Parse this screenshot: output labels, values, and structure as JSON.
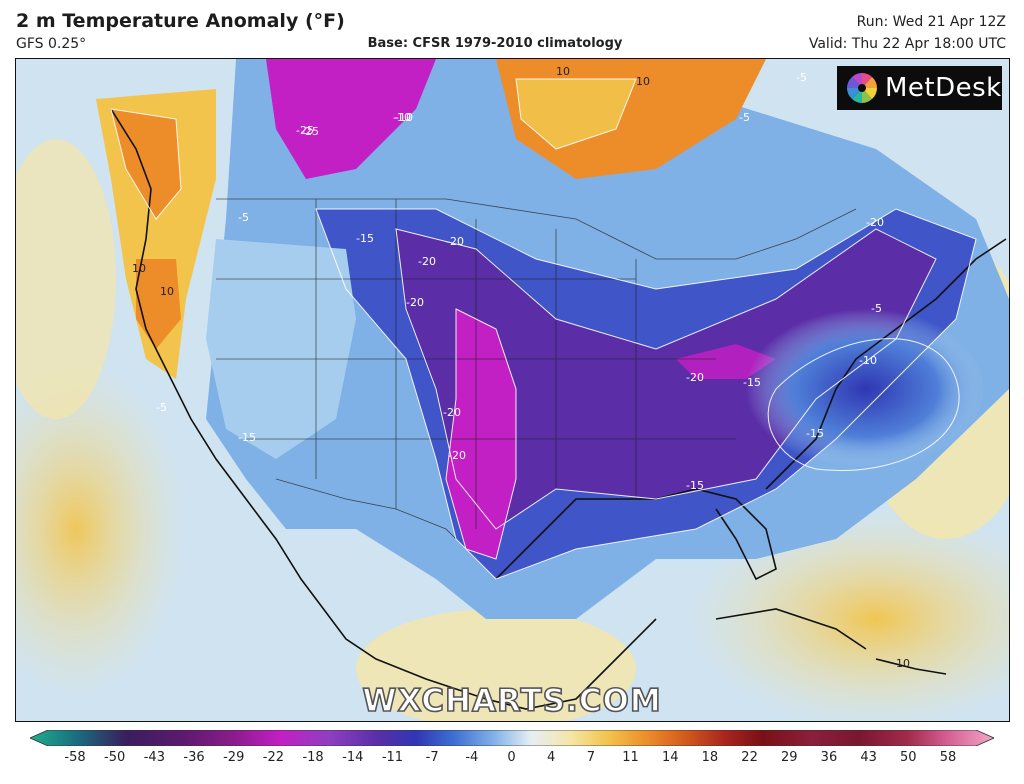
{
  "header": {
    "title": "2 m Temperature Anomaly (°F)",
    "model": "GFS 0.25°",
    "base": "Base: CFSR 1979-2010 climatology",
    "run": "Run: Wed 21 Apr 12Z",
    "valid": "Valid: Thu 22 Apr 18:00 UTC"
  },
  "branding": {
    "logo_text": "MetDesk",
    "watermark": "WXCHARTS.COM"
  },
  "map": {
    "region": "North America",
    "contour_labels": [
      "-25",
      "-20",
      "-20",
      "-20",
      "-20",
      "-20",
      "-20",
      "-15",
      "-15",
      "-15",
      "-15",
      "-10",
      "-10",
      "-5",
      "-5",
      "-5",
      "-5",
      "10",
      "10",
      "10",
      "10",
      "10",
      "-25",
      "-20",
      "-15",
      "-10",
      "-5"
    ]
  },
  "colorbar": {
    "ticks": [
      "-58",
      "-50",
      "-43",
      "-36",
      "-29",
      "-22",
      "-18",
      "-14",
      "-11",
      "-7",
      "-4",
      "0",
      "4",
      "7",
      "11",
      "14",
      "18",
      "22",
      "29",
      "36",
      "43",
      "50",
      "58"
    ],
    "colors": [
      "#1fae8e",
      "#1b6b7d",
      "#3a1d5e",
      "#5d1a6f",
      "#8a1c8a",
      "#c21fc4",
      "#8f3fbf",
      "#5b2ea8",
      "#2f37b3",
      "#3f6fd3",
      "#7fb0e6",
      "#e6eef5",
      "#f5e6a8",
      "#f2c44b",
      "#ec8d2a",
      "#d25a1c",
      "#a9261f",
      "#7a1016",
      "#8a1f3b",
      "#7a1730",
      "#a02a4a",
      "#d35d8f",
      "#f2a6c8"
    ]
  }
}
